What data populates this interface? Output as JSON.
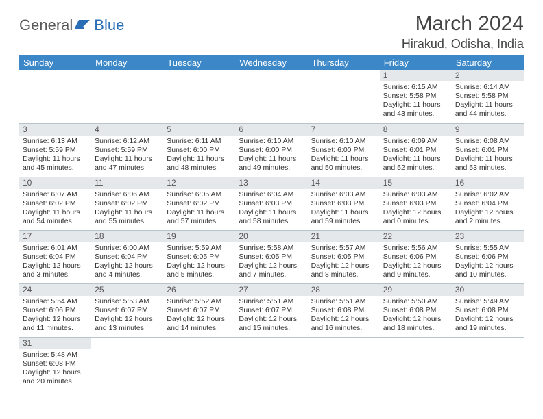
{
  "brand": {
    "word1": "General",
    "word2": "Blue"
  },
  "title": "March 2024",
  "location": "Hirakud, Odisha, India",
  "weekday_headers": [
    "Sunday",
    "Monday",
    "Tuesday",
    "Wednesday",
    "Thursday",
    "Friday",
    "Saturday"
  ],
  "colors": {
    "header_bg": "#3b87c8",
    "header_fg": "#ffffff",
    "daynum_bg": "#e4e8eb",
    "border": "#b8c4cc",
    "brand_gray": "#5a5a5a",
    "brand_blue": "#2a6fb5"
  },
  "first_day_column": 5,
  "days": [
    {
      "n": 1,
      "sunrise": "6:15 AM",
      "sunset": "5:58 PM",
      "daylight": "11 hours and 43 minutes."
    },
    {
      "n": 2,
      "sunrise": "6:14 AM",
      "sunset": "5:58 PM",
      "daylight": "11 hours and 44 minutes."
    },
    {
      "n": 3,
      "sunrise": "6:13 AM",
      "sunset": "5:59 PM",
      "daylight": "11 hours and 45 minutes."
    },
    {
      "n": 4,
      "sunrise": "6:12 AM",
      "sunset": "5:59 PM",
      "daylight": "11 hours and 47 minutes."
    },
    {
      "n": 5,
      "sunrise": "6:11 AM",
      "sunset": "6:00 PM",
      "daylight": "11 hours and 48 minutes."
    },
    {
      "n": 6,
      "sunrise": "6:10 AM",
      "sunset": "6:00 PM",
      "daylight": "11 hours and 49 minutes."
    },
    {
      "n": 7,
      "sunrise": "6:10 AM",
      "sunset": "6:00 PM",
      "daylight": "11 hours and 50 minutes."
    },
    {
      "n": 8,
      "sunrise": "6:09 AM",
      "sunset": "6:01 PM",
      "daylight": "11 hours and 52 minutes."
    },
    {
      "n": 9,
      "sunrise": "6:08 AM",
      "sunset": "6:01 PM",
      "daylight": "11 hours and 53 minutes."
    },
    {
      "n": 10,
      "sunrise": "6:07 AM",
      "sunset": "6:02 PM",
      "daylight": "11 hours and 54 minutes."
    },
    {
      "n": 11,
      "sunrise": "6:06 AM",
      "sunset": "6:02 PM",
      "daylight": "11 hours and 55 minutes."
    },
    {
      "n": 12,
      "sunrise": "6:05 AM",
      "sunset": "6:02 PM",
      "daylight": "11 hours and 57 minutes."
    },
    {
      "n": 13,
      "sunrise": "6:04 AM",
      "sunset": "6:03 PM",
      "daylight": "11 hours and 58 minutes."
    },
    {
      "n": 14,
      "sunrise": "6:03 AM",
      "sunset": "6:03 PM",
      "daylight": "11 hours and 59 minutes."
    },
    {
      "n": 15,
      "sunrise": "6:03 AM",
      "sunset": "6:03 PM",
      "daylight": "12 hours and 0 minutes."
    },
    {
      "n": 16,
      "sunrise": "6:02 AM",
      "sunset": "6:04 PM",
      "daylight": "12 hours and 2 minutes."
    },
    {
      "n": 17,
      "sunrise": "6:01 AM",
      "sunset": "6:04 PM",
      "daylight": "12 hours and 3 minutes."
    },
    {
      "n": 18,
      "sunrise": "6:00 AM",
      "sunset": "6:04 PM",
      "daylight": "12 hours and 4 minutes."
    },
    {
      "n": 19,
      "sunrise": "5:59 AM",
      "sunset": "6:05 PM",
      "daylight": "12 hours and 5 minutes."
    },
    {
      "n": 20,
      "sunrise": "5:58 AM",
      "sunset": "6:05 PM",
      "daylight": "12 hours and 7 minutes."
    },
    {
      "n": 21,
      "sunrise": "5:57 AM",
      "sunset": "6:05 PM",
      "daylight": "12 hours and 8 minutes."
    },
    {
      "n": 22,
      "sunrise": "5:56 AM",
      "sunset": "6:06 PM",
      "daylight": "12 hours and 9 minutes."
    },
    {
      "n": 23,
      "sunrise": "5:55 AM",
      "sunset": "6:06 PM",
      "daylight": "12 hours and 10 minutes."
    },
    {
      "n": 24,
      "sunrise": "5:54 AM",
      "sunset": "6:06 PM",
      "daylight": "12 hours and 11 minutes."
    },
    {
      "n": 25,
      "sunrise": "5:53 AM",
      "sunset": "6:07 PM",
      "daylight": "12 hours and 13 minutes."
    },
    {
      "n": 26,
      "sunrise": "5:52 AM",
      "sunset": "6:07 PM",
      "daylight": "12 hours and 14 minutes."
    },
    {
      "n": 27,
      "sunrise": "5:51 AM",
      "sunset": "6:07 PM",
      "daylight": "12 hours and 15 minutes."
    },
    {
      "n": 28,
      "sunrise": "5:51 AM",
      "sunset": "6:08 PM",
      "daylight": "12 hours and 16 minutes."
    },
    {
      "n": 29,
      "sunrise": "5:50 AM",
      "sunset": "6:08 PM",
      "daylight": "12 hours and 18 minutes."
    },
    {
      "n": 30,
      "sunrise": "5:49 AM",
      "sunset": "6:08 PM",
      "daylight": "12 hours and 19 minutes."
    },
    {
      "n": 31,
      "sunrise": "5:48 AM",
      "sunset": "6:08 PM",
      "daylight": "12 hours and 20 minutes."
    }
  ],
  "labels": {
    "sunrise": "Sunrise: ",
    "sunset": "Sunset: ",
    "daylight": "Daylight: "
  }
}
